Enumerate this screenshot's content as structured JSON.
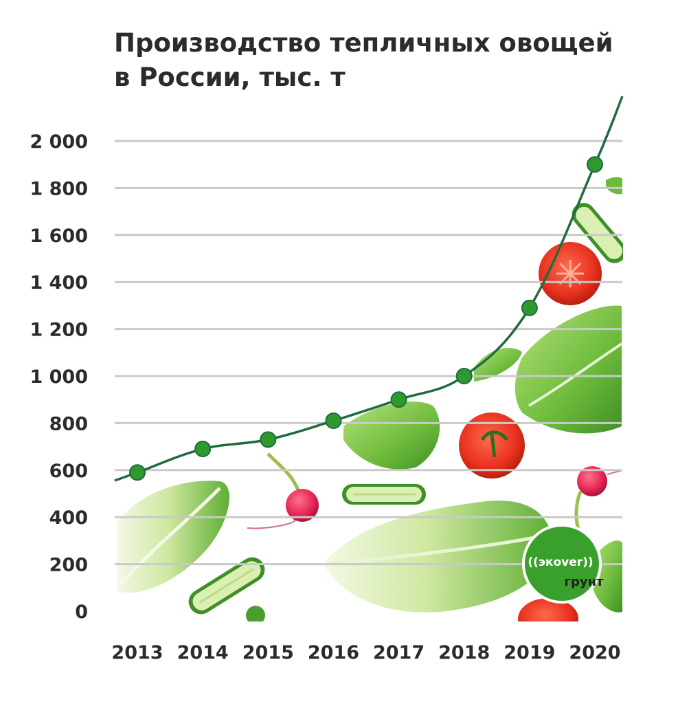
{
  "chart_data": {
    "type": "line",
    "title_lines": [
      "Производство тепличных овощей",
      "в России, тыс. т"
    ],
    "xlabel": "",
    "ylabel": "",
    "categories": [
      "2013",
      "2014",
      "2015",
      "2016",
      "2017",
      "2018",
      "2019",
      "2020"
    ],
    "series": [
      {
        "values": [
          590,
          690,
          730,
          810,
          900,
          1000,
          1290,
          1900
        ]
      }
    ],
    "ylim": [
      0,
      2000
    ],
    "yticks": [
      0,
      200,
      400,
      600,
      800,
      1000,
      1200,
      1400,
      1600,
      1800,
      2000
    ],
    "ytick_labels": [
      "0",
      "200",
      "400",
      "600",
      "800",
      "1 000",
      "1 200",
      "1 400",
      "1 600",
      "1 800",
      "2 000"
    ],
    "grid": true,
    "line_color": "#1f6b3f",
    "marker_color": "#2e9a2e",
    "grid_color": "#c9c9c9"
  },
  "logo": {
    "line1": "((экover))",
    "line2": "грунт",
    "color": "#3aa02c"
  }
}
